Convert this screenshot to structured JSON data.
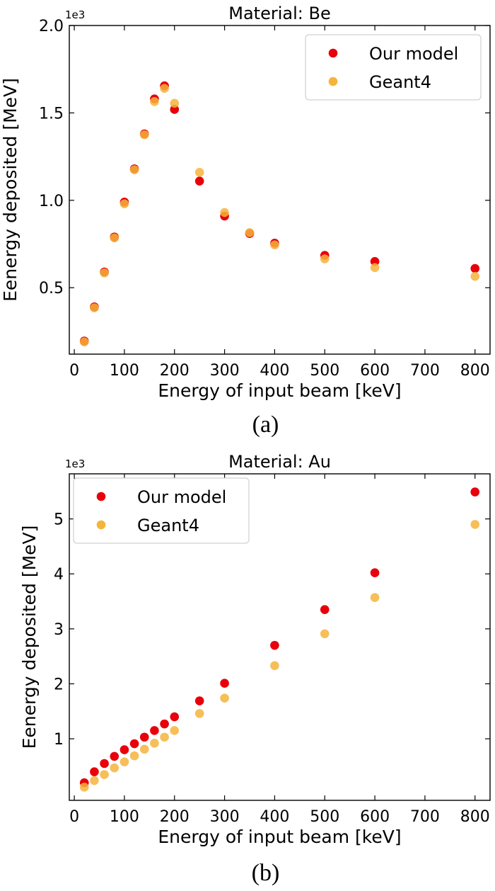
{
  "chart_data": [
    {
      "type": "scatter",
      "title": "Material: Be",
      "xlabel": "Energy of input beam [keV]",
      "ylabel": "Eenergy deposited [MeV]",
      "y_exponent_label": "1e3",
      "caption": "(a)",
      "xlim": [
        -10,
        830
      ],
      "ylim": [
        0.12,
        2.0
      ],
      "xticks": [
        0,
        100,
        200,
        300,
        400,
        500,
        600,
        700,
        800
      ],
      "xtick_labels": [
        "0",
        "100",
        "200",
        "300",
        "400",
        "500",
        "600",
        "700",
        "800"
      ],
      "yticks": [
        0.5,
        1.0,
        1.5,
        2.0
      ],
      "ytick_labels": [
        "0.5",
        "1.0",
        "1.5",
        "2.0"
      ],
      "grid": false,
      "legend_position": "top-right",
      "series": [
        {
          "name": "Our model",
          "color": "#e8000b",
          "x": [
            20,
            40,
            60,
            80,
            100,
            120,
            140,
            160,
            180,
            200,
            250,
            300,
            350,
            400,
            500,
            600,
            800
          ],
          "y": [
            0.195,
            0.39,
            0.59,
            0.79,
            0.99,
            1.18,
            1.38,
            1.58,
            1.655,
            1.52,
            1.11,
            0.91,
            0.81,
            0.755,
            0.685,
            0.65,
            0.61
          ]
        },
        {
          "name": "Geant4",
          "color": "#f5b43c",
          "x": [
            20,
            40,
            60,
            80,
            100,
            120,
            140,
            160,
            180,
            200,
            250,
            300,
            350,
            400,
            500,
            600,
            800
          ],
          "y": [
            0.19,
            0.385,
            0.585,
            0.785,
            0.98,
            1.175,
            1.375,
            1.565,
            1.64,
            1.555,
            1.16,
            0.93,
            0.815,
            0.745,
            0.665,
            0.615,
            0.565
          ]
        }
      ]
    },
    {
      "type": "scatter",
      "title": "Material: Au",
      "xlabel": "Energy of input beam [keV]",
      "ylabel": "Eenergy deposited [MeV]",
      "y_exponent_label": "1e3",
      "caption": "(b)",
      "xlim": [
        -10,
        830
      ],
      "ylim": [
        -0.12,
        5.82
      ],
      "xticks": [
        0,
        100,
        200,
        300,
        400,
        500,
        600,
        700,
        800
      ],
      "xtick_labels": [
        "0",
        "100",
        "200",
        "300",
        "400",
        "500",
        "600",
        "700",
        "800"
      ],
      "yticks": [
        1,
        2,
        3,
        4,
        5
      ],
      "ytick_labels": [
        "1",
        "2",
        "3",
        "4",
        "5"
      ],
      "grid": false,
      "legend_position": "top-left",
      "series": [
        {
          "name": "Our model",
          "color": "#e8000b",
          "x": [
            20,
            40,
            60,
            80,
            100,
            120,
            140,
            160,
            180,
            200,
            250,
            300,
            400,
            500,
            600,
            800
          ],
          "y": [
            0.2,
            0.4,
            0.55,
            0.68,
            0.8,
            0.91,
            1.03,
            1.15,
            1.27,
            1.4,
            1.69,
            2.01,
            2.7,
            3.35,
            4.02,
            5.49
          ]
        },
        {
          "name": "Geant4",
          "color": "#f5b43c",
          "x": [
            20,
            40,
            60,
            80,
            100,
            120,
            140,
            160,
            180,
            200,
            250,
            300,
            400,
            500,
            600,
            800
          ],
          "y": [
            0.12,
            0.24,
            0.35,
            0.47,
            0.58,
            0.69,
            0.81,
            0.92,
            1.03,
            1.15,
            1.46,
            1.74,
            2.33,
            2.91,
            3.57,
            4.9
          ]
        }
      ]
    }
  ]
}
